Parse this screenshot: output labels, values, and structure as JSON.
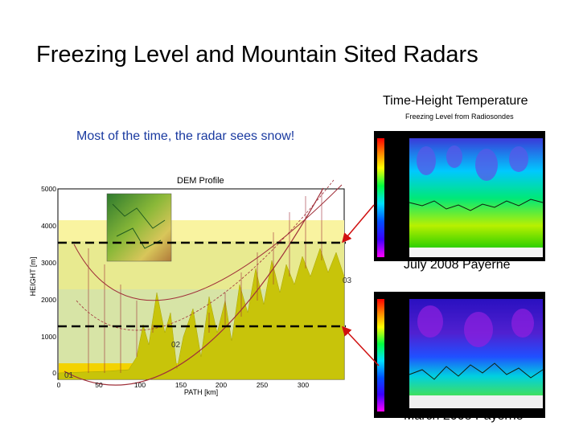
{
  "slide": {
    "title": "Freezing Level and Mountain Sited Radars",
    "note": "Most of the time, the radar sees snow!"
  },
  "dem_profile": {
    "title": "DEM Profile",
    "ylabel": "HEIGHT [m]",
    "xlabel": "PATH [km]",
    "y_ticks": [
      "0",
      "1000",
      "2000",
      "3000",
      "4000",
      "5000"
    ],
    "x_ticks": [
      "0",
      "50",
      "100",
      "150",
      "200",
      "250",
      "300"
    ],
    "markers": [
      "01",
      "02",
      "03"
    ],
    "freezing_levels_m": [
      3500,
      1300
    ],
    "colors": {
      "band_yellow": "#f5f08a",
      "band_green": "#d8e6a0",
      "terrain": "#c9c400",
      "beam": "#a0303a",
      "freeze_line": "#000000"
    }
  },
  "time_height": {
    "title": "Time-Height Temperature",
    "subtitle": "Freezing Level from Radiosondes",
    "panels": [
      {
        "caption": "July 2008 Payerne"
      },
      {
        "caption": "March 2008 Payerne"
      }
    ]
  }
}
